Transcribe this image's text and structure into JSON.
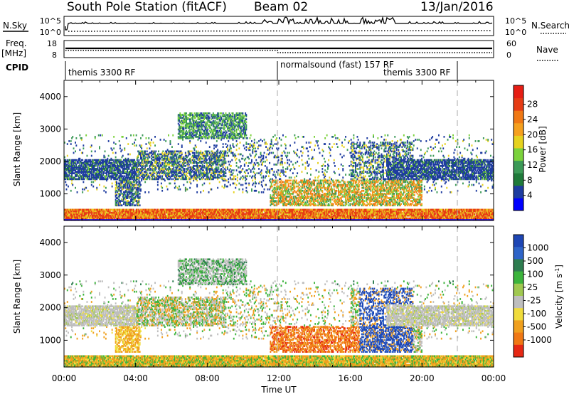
{
  "header": {
    "station": "South Pole Station (fitACF)",
    "beam": "Beam 02",
    "date": "13/Jan/2016"
  },
  "top_panels": {
    "nsky_label": "N.Sky",
    "nsearch_label": "N.Search",
    "nsky_ticks": [
      "10^5",
      "10^0"
    ],
    "nsearch_ticks": [
      "10^5",
      "10^0"
    ],
    "freq_label": "Freq.",
    "freq_unit": "[MHz]",
    "freq_ticks": [
      "18",
      "8"
    ],
    "nave_label": "Nave",
    "nave_ticks": [
      "60",
      "0"
    ],
    "cpid_label": "CPID",
    "cpid_segments": [
      {
        "label": "themis 3300 RF",
        "start_hr": 0
      },
      {
        "label": "normalsound (fast) 157 RF",
        "start_hr": 12
      },
      {
        "label": "themis 3300 RF",
        "start_hr": 22
      }
    ]
  },
  "chart_data": [
    {
      "type": "heatmap",
      "title": "Power",
      "ylabel": "Slant Range [km]",
      "xlim_hr": [
        0,
        24
      ],
      "ylim": [
        180,
        4500
      ],
      "y_ticks": [
        1000,
        2000,
        3000,
        4000
      ],
      "colorbar": {
        "label": "Power [dB]",
        "ticks": [
          "4",
          "8",
          "12",
          "16",
          "20",
          "24",
          "28"
        ],
        "colors": [
          "#0000ff",
          "#1e3ca0",
          "#1f7a3a",
          "#3c9a57",
          "#7bd23c",
          "#e6d21e",
          "#f5a01e",
          "#f07814",
          "#e63c14",
          "#e61e14"
        ]
      },
      "dashed_lines_hr": [
        12,
        22
      ]
    },
    {
      "type": "heatmap",
      "title": "Velocity",
      "ylabel": "Slant Range [km]",
      "xlim_hr": [
        0,
        24
      ],
      "ylim": [
        180,
        4500
      ],
      "y_ticks": [
        1000,
        2000,
        3000,
        4000
      ],
      "colorbar": {
        "label": "Velocity [m s^-1]",
        "ticks": [
          "1000",
          "500",
          "100",
          "25",
          "-25",
          "-100",
          "-500",
          "-1000"
        ],
        "colors": [
          "#1e46b4",
          "#2e64c8",
          "#2e7d50",
          "#3cb43c",
          "#a0c850",
          "#bebebe",
          "#f0dc3c",
          "#f0a01e",
          "#f07814",
          "#e62814"
        ]
      },
      "dashed_lines_hr": [
        12,
        22
      ]
    }
  ],
  "xaxis": {
    "label": "Time UT",
    "ticks": [
      "00:00",
      "04:00",
      "08:00",
      "12:00",
      "16:00",
      "20:00",
      "00:00"
    ]
  }
}
